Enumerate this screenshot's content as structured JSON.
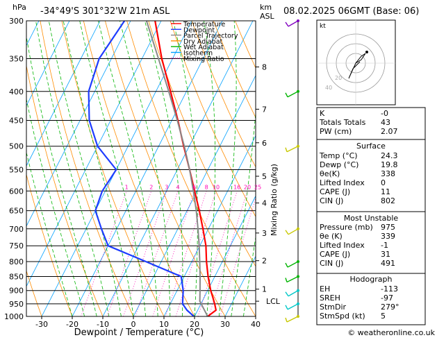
{
  "header": {
    "units_p": "hPa",
    "location": "-34°49'S  301°32'W  21m  ASL",
    "units_km": "km",
    "units_asl": "ASL",
    "datetime": "08.02.2025  06GMT  (Base: 06)"
  },
  "legend": [
    {
      "label": "Temperature",
      "color": "#ff0000"
    },
    {
      "label": "Dewpoint",
      "color": "#1e3cff"
    },
    {
      "label": "Parcel Trajectory",
      "color": "#888888"
    },
    {
      "label": "Dry Adiabat",
      "color": "#ff8c00"
    },
    {
      "label": "Wet Adiabat",
      "color": "#00b400"
    },
    {
      "label": "Isotherm",
      "color": "#00a0ff"
    },
    {
      "label": "Mixing Ratio",
      "color": "#ff00b4",
      "dotted": true
    }
  ],
  "chart_data": {
    "type": "line",
    "title": "",
    "xlabel": "Dewpoint / Temperature (°C)",
    "ylabel": "",
    "y2label": "Mixing Ratio (g/kg)",
    "xlim": [
      -35,
      40
    ],
    "ylim": [
      1000,
      300
    ],
    "y_scale": "log",
    "skew": "skew-T",
    "x_ticks": [
      "-30",
      "-20",
      "-10",
      "0",
      "10",
      "20",
      "30",
      "40"
    ],
    "x_tick_values": [
      -30,
      -20,
      -10,
      0,
      10,
      20,
      30,
      40
    ],
    "pressure_levels": [
      300,
      350,
      400,
      450,
      500,
      550,
      600,
      650,
      700,
      750,
      800,
      850,
      900,
      950,
      1000
    ],
    "km_ticks": [
      {
        "label": "8",
        "p": 362
      },
      {
        "label": "7",
        "p": 430
      },
      {
        "label": "6",
        "p": 493
      },
      {
        "label": "5",
        "p": 565
      },
      {
        "label": "4",
        "p": 630
      },
      {
        "label": "3",
        "p": 712
      },
      {
        "label": "2",
        "p": 797
      },
      {
        "label": "1",
        "p": 895
      },
      {
        "label": "LCL",
        "p": 940
      }
    ],
    "mixing_ratio_labels": [
      "1",
      "2",
      "3",
      "4",
      "6",
      "8",
      "10",
      "16",
      "20",
      "25"
    ],
    "mixing_ratio_values": [
      1,
      2,
      3,
      4,
      6,
      8,
      10,
      16,
      20,
      25
    ],
    "series": [
      {
        "name": "Temperature",
        "color": "#ff0000",
        "p": [
          1000,
          975,
          950,
          925,
          900,
          850,
          800,
          750,
          700,
          650,
          600,
          550,
          500,
          450,
          400,
          350,
          300
        ],
        "t": [
          24.3,
          26.0,
          24.5,
          22.8,
          21.0,
          17.8,
          14.8,
          12.0,
          8.2,
          4.0,
          -0.8,
          -6.0,
          -11.8,
          -18.0,
          -25.2,
          -33.5,
          -42.0
        ]
      },
      {
        "name": "Dewpoint",
        "color": "#1e3cff",
        "p": [
          1000,
          975,
          950,
          925,
          900,
          850,
          800,
          750,
          700,
          650,
          600,
          550,
          500,
          450,
          400,
          350,
          300
        ],
        "t": [
          19.8,
          16.5,
          14.0,
          13.0,
          12.0,
          9.0,
          -5.0,
          -20.0,
          -25.0,
          -30.0,
          -31.0,
          -30.0,
          -40.0,
          -47.0,
          -52.0,
          -54.0,
          -52.0
        ]
      },
      {
        "name": "Parcel Trajectory",
        "color": "#888888",
        "p": [
          1000,
          940,
          900,
          850,
          800,
          750,
          700,
          650,
          600,
          550,
          500,
          450,
          400,
          350,
          300
        ],
        "t": [
          24.3,
          19.2,
          17.5,
          15.2,
          12.6,
          9.8,
          6.6,
          3.0,
          -1.2,
          -6.0,
          -11.6,
          -18.2,
          -25.8,
          -34.6,
          -44.8
        ]
      }
    ],
    "wind_barbs": [
      "300 hPa",
      "400 hPa",
      "500 hPa",
      "700 hPa",
      "800 hPa",
      "850 hPa",
      "900 hPa",
      "950 hPa",
      "1000 hPa"
    ]
  },
  "hodograph": {
    "unit": "kt",
    "ring_labels": [
      "40",
      "20"
    ]
  },
  "indices": [
    {
      "label": "K",
      "value": "-0"
    },
    {
      "label": "Totals Totals",
      "value": "43"
    },
    {
      "label": "PW (cm)",
      "value": "2.07"
    }
  ],
  "surface": {
    "title": "Surface",
    "rows": [
      {
        "label": "Temp (°C)",
        "value": "24.3"
      },
      {
        "label": "Dewp (°C)",
        "value": "19.8"
      },
      {
        "label": "θe(K)",
        "value": "338"
      },
      {
        "label": "Lifted Index",
        "value": "0"
      },
      {
        "label": "CAPE (J)",
        "value": "11"
      },
      {
        "label": "CIN (J)",
        "value": "802"
      }
    ]
  },
  "most_unstable": {
    "title": "Most Unstable",
    "rows": [
      {
        "label": "Pressure (mb)",
        "value": "975"
      },
      {
        "label": "θe (K)",
        "value": "339"
      },
      {
        "label": "Lifted Index",
        "value": "-1"
      },
      {
        "label": "CAPE (J)",
        "value": "31"
      },
      {
        "label": "CIN (J)",
        "value": "491"
      }
    ]
  },
  "hodo_table": {
    "title": "Hodograph",
    "rows": [
      {
        "label": "EH",
        "value": "-113"
      },
      {
        "label": "SREH",
        "value": "-97"
      },
      {
        "label": "StmDir",
        "value": "279°"
      },
      {
        "label": "StmSpd (kt)",
        "value": "5"
      }
    ]
  },
  "footer": "© weatheronline.co.uk"
}
